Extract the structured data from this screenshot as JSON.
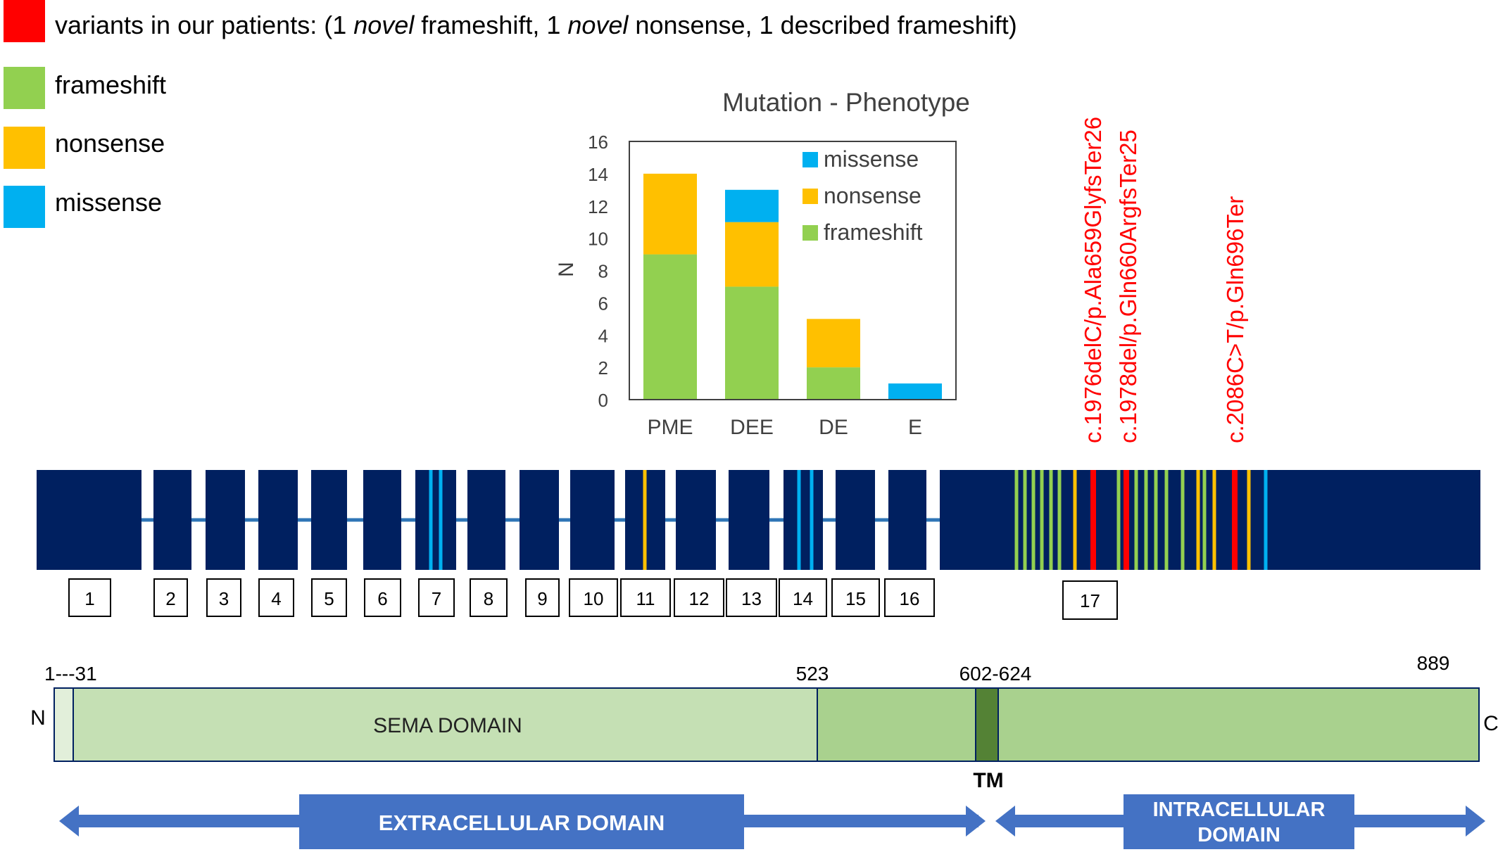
{
  "legend": {
    "items": [
      {
        "color": "#ff0000",
        "parts": [
          {
            "text": "variants in our patients: (1 ",
            "italic": false
          },
          {
            "text": "novel",
            "italic": true
          },
          {
            "text": " frameshift, 1 ",
            "italic": false
          },
          {
            "text": "novel",
            "italic": true
          },
          {
            "text": " nonsense, 1 described frameshift)",
            "italic": false
          }
        ]
      },
      {
        "color": "#92d050",
        "label": "frameshift"
      },
      {
        "color": "#ffc000",
        "label": "nonsense"
      },
      {
        "color": "#00b0f0",
        "label": "missense"
      }
    ]
  },
  "chart_data": {
    "type": "bar",
    "stacked": true,
    "title": "Mutation - Phenotype",
    "xlabel": "",
    "ylabel": "N",
    "ylim": [
      0,
      16
    ],
    "yticks": [
      0,
      2,
      4,
      6,
      8,
      10,
      12,
      14,
      16
    ],
    "categories": [
      "PME",
      "DEE",
      "DE",
      "E"
    ],
    "series": [
      {
        "name": "frameshift",
        "color": "#92d050",
        "values": [
          9,
          7,
          2,
          0
        ]
      },
      {
        "name": "nonsense",
        "color": "#ffc000",
        "values": [
          5,
          4,
          3,
          0
        ]
      },
      {
        "name": "missense",
        "color": "#00b0f0",
        "values": [
          0,
          2,
          0,
          1
        ]
      }
    ],
    "legend_order": [
      "missense",
      "nonsense",
      "frameshift"
    ],
    "legend_position": "top-right",
    "grid": false
  },
  "variant_labels": [
    "c.1976delC/p.Ala659GlyfsTer26",
    "c.1978del/p.Gln660ArgfsTer25",
    "c.2086C>T/p.Gln696Ter"
  ],
  "exons": {
    "numbers": [
      "1",
      "2",
      "3",
      "4",
      "5",
      "6",
      "7",
      "8",
      "9",
      "10",
      "11",
      "12",
      "13",
      "14",
      "15",
      "16",
      "17"
    ],
    "block_color": "#002060",
    "intron_color": "#2e75b6",
    "exon_variants": [
      {
        "exon": "7",
        "types": [
          "missense",
          "missense"
        ]
      },
      {
        "exon": "11",
        "types": [
          "nonsense"
        ]
      },
      {
        "exon": "14",
        "types": [
          "missense",
          "missense"
        ]
      }
    ],
    "exon17_variants": [
      "frameshift",
      "frameshift",
      "frameshift",
      "frameshift",
      "frameshift",
      "frameshift",
      "nonsense",
      "patient",
      "frameshift",
      "patient",
      "frameshift",
      "frameshift",
      "frameshift",
      "frameshift",
      "frameshift",
      "nonsense",
      "frameshift",
      "nonsense",
      "patient",
      "nonsense",
      "missense"
    ]
  },
  "protein": {
    "start_label": "1---31",
    "sema_end_label": "523",
    "tm_range_label": "602-624",
    "end_label": "889",
    "n_term": "N",
    "c_term": "C",
    "sema_label": "SEMA DOMAIN",
    "tm_label": "TM",
    "extracellular_label": "EXTRACELLULAR DOMAIN",
    "intracellular_label_line1": "INTRACELLULAR",
    "intracellular_label_line2": "DOMAIN"
  }
}
